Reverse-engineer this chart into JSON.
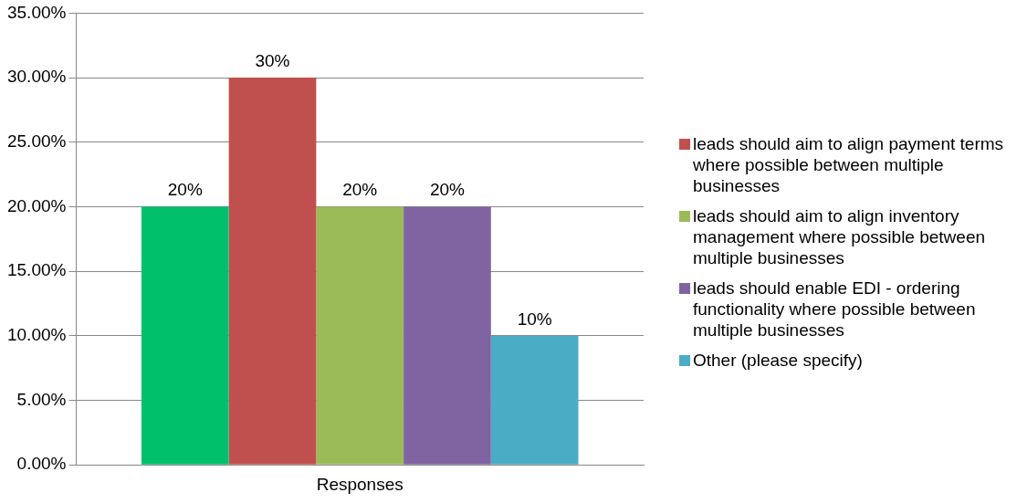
{
  "chart_data": {
    "type": "bar",
    "categories": [
      "Responses"
    ],
    "series": [
      {
        "color": "#00c06b",
        "values": [
          20
        ],
        "value_labels": [
          "20%"
        ]
      },
      {
        "name": "leads should aim to align payment terms where possible between multiple businesses",
        "color": "#c0504d",
        "values": [
          30
        ],
        "value_labels": [
          "30%"
        ]
      },
      {
        "name": "leads should aim to align inventory management where possible between multiple businesses",
        "color": "#9bbb59",
        "values": [
          20
        ],
        "value_labels": [
          "20%"
        ]
      },
      {
        "name": "leads should enable EDI - ordering functionality where possible between multiple businesses",
        "color": "#8064a2",
        "values": [
          20
        ],
        "value_labels": [
          "20%"
        ]
      },
      {
        "name": "Other (please specify)",
        "color": "#4bacc6",
        "values": [
          10
        ],
        "value_labels": [
          "10%"
        ]
      }
    ],
    "ylim": [
      0,
      35
    ],
    "yticks": [
      {
        "value": 0,
        "label": "0.00%"
      },
      {
        "value": 5,
        "label": "5.00%"
      },
      {
        "value": 10,
        "label": "10.00%"
      },
      {
        "value": 15,
        "label": "15.00%"
      },
      {
        "value": 20,
        "label": "20.00%"
      },
      {
        "value": 25,
        "label": "25.00%"
      },
      {
        "value": 30,
        "label": "30.00%"
      },
      {
        "value": 35,
        "label": "35.00%"
      }
    ],
    "grid": "y",
    "legend": "right"
  }
}
